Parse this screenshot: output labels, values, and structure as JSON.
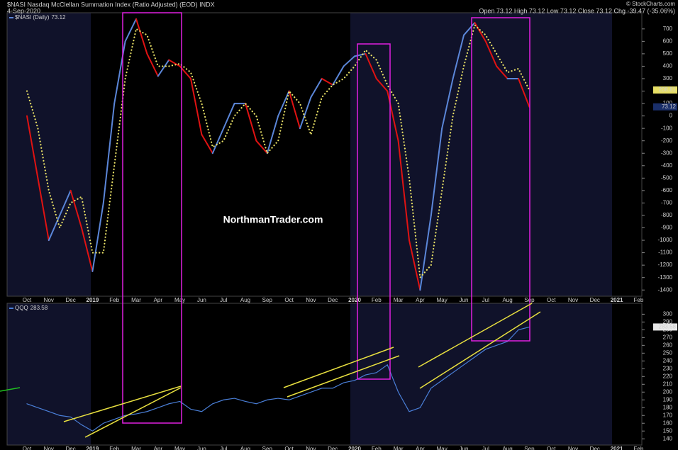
{
  "header": {
    "title": "$NASI Nasdaq McClellan Summation Index (Ratio Adjusted) (EOD) INDX",
    "date": "4-Sep-2020",
    "ohlc": "Open 73.12  High 73.12  Low 73.12  Close 73.12  Chg -39.47 (-35.06%)",
    "source": "© StockCharts.com",
    "watermark": "NorthmanTrader.com"
  },
  "chart_data": [
    {
      "type": "line",
      "categories": [
        "Oct",
        null,
        "Nov",
        null,
        "Dec",
        null,
        "2019",
        null,
        "Feb",
        null,
        "Mar",
        null,
        "Apr",
        null,
        "May",
        null,
        "Jun",
        null,
        "Jul",
        null,
        "Aug",
        null,
        "Sep",
        null,
        "Oct",
        null,
        "Nov",
        null,
        "Dec",
        null,
        "2020",
        null,
        "Feb",
        null,
        "Mar",
        null,
        "Apr",
        null,
        "May",
        null,
        "Jun",
        null,
        "Jul",
        null,
        "Aug",
        null,
        "Sep",
        null,
        "Oct",
        null,
        "Nov",
        null,
        "Dec",
        null,
        "2021",
        null,
        "Feb"
      ],
      "series": [
        {
          "name": "$NASI (Daily)",
          "color": "#5b86d8",
          "falling_color": "#e01212",
          "values": [
            0,
            -500,
            -1000,
            -800,
            -600,
            -900,
            -1250,
            -700,
            100,
            600,
            780,
            500,
            320,
            450,
            400,
            300,
            -150,
            -300,
            -100,
            100,
            100,
            -200,
            -300,
            0,
            200,
            -100,
            150,
            300,
            250,
            400,
            480,
            500,
            300,
            200,
            -200,
            -1000,
            -1400,
            -800,
            -100,
            300,
            650,
            750,
            600,
            400,
            300,
            300,
            73.12,
            null,
            null,
            null,
            null,
            null,
            null,
            null,
            null,
            null,
            null
          ]
        },
        {
          "color": "#e8e066",
          "values": [
            200,
            -100,
            -600,
            -900,
            -700,
            -650,
            -1100,
            -1100,
            -400,
            300,
            700,
            650,
            400,
            400,
            420,
            350,
            100,
            -250,
            -200,
            0,
            100,
            0,
            -300,
            -200,
            200,
            100,
            -150,
            150,
            250,
            300,
            400,
            530,
            450,
            250,
            100,
            -500,
            -1300,
            -1200,
            -600,
            0,
            400,
            730,
            650,
            500,
            350,
            380,
            208.81,
            null,
            null,
            null,
            null,
            null,
            null,
            null,
            null,
            null,
            null
          ]
        }
      ],
      "ylim": [
        -1450,
        830
      ],
      "yticks": [
        700,
        600,
        500,
        400,
        300,
        200,
        100,
        0,
        -100,
        -200,
        -300,
        -400,
        -500,
        -600,
        -700,
        -800,
        -900,
        -1000,
        -1100,
        -1200,
        -1300,
        -1400
      ]
    },
    {
      "type": "line",
      "categories": [
        "Oct",
        null,
        "Nov",
        null,
        "Dec",
        null,
        "2019",
        null,
        "Feb",
        null,
        "Mar",
        null,
        "Apr",
        null,
        "May",
        null,
        "Jun",
        null,
        "Jul",
        null,
        "Aug",
        null,
        "Sep",
        null,
        "Oct",
        null,
        "Nov",
        null,
        "Dec",
        null,
        "2020",
        null,
        "Feb",
        null,
        "Mar",
        null,
        "Apr",
        null,
        "May",
        null,
        "Jun",
        null,
        "Jul",
        null,
        "Aug",
        null,
        "Sep",
        null,
        "Oct",
        null,
        "Nov",
        null,
        "Dec",
        null,
        "2021",
        null,
        "Feb"
      ],
      "series": [
        {
          "name": "QQQ",
          "color": "#4a7fd8",
          "values": [
            185,
            180,
            175,
            170,
            168,
            158,
            150,
            160,
            165,
            170,
            172,
            175,
            180,
            185,
            188,
            178,
            175,
            185,
            190,
            192,
            188,
            185,
            190,
            192,
            190,
            195,
            200,
            205,
            205,
            212,
            215,
            222,
            225,
            235,
            200,
            175,
            180,
            205,
            215,
            225,
            235,
            245,
            255,
            260,
            265,
            280,
            283.58,
            null,
            null,
            null,
            null,
            null,
            null,
            null,
            null,
            null,
            null
          ]
        }
      ],
      "ylim": [
        132,
        314
      ],
      "yticks": [
        300,
        290,
        280,
        270,
        260,
        250,
        240,
        230,
        220,
        210,
        200,
        190,
        180,
        170,
        160,
        150,
        140
      ]
    }
  ]
}
